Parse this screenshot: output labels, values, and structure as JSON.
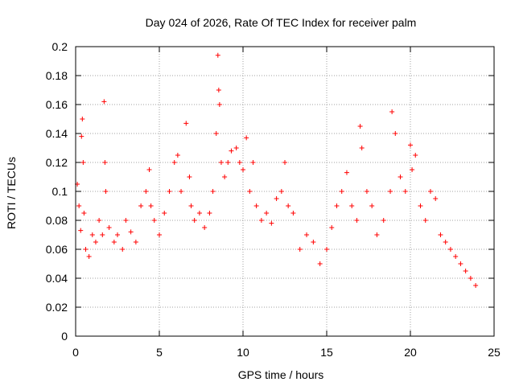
{
  "chart_data": {
    "type": "scatter",
    "title": "Day 024 of 2026, Rate Of TEC Index for receiver palm",
    "xlabel": "GPS time / hours",
    "ylabel": "ROTI / TECUs",
    "xlim": [
      0,
      25
    ],
    "ylim": [
      0,
      0.2
    ],
    "x_ticks": [
      0,
      5,
      10,
      15,
      20,
      25
    ],
    "x_tick_labels": [
      "0",
      "5",
      "10",
      "15",
      "20",
      "25"
    ],
    "y_ticks": [
      0,
      0.02,
      0.04,
      0.06,
      0.08,
      0.1,
      0.12,
      0.14,
      0.16,
      0.18,
      0.2
    ],
    "y_tick_labels": [
      "0",
      "0.02",
      "0.04",
      "0.06",
      "0.08",
      "0.1",
      "0.12",
      "0.14",
      "0.16",
      "0.18",
      "0.2"
    ],
    "grid": true,
    "marker": "+",
    "color": "#ff0000",
    "series": [
      {
        "x": [
          0.1,
          0.2,
          0.3,
          0.35,
          0.4,
          0.45,
          0.5,
          0.6,
          0.8,
          1.0,
          1.2,
          1.4,
          1.6,
          1.7,
          1.75,
          1.8,
          2.0,
          2.3,
          2.5,
          2.8,
          3.0,
          3.3,
          3.6,
          3.9,
          4.2,
          4.4,
          4.5,
          4.7,
          5.0,
          5.3,
          5.6,
          5.9,
          6.1,
          6.3,
          6.6,
          6.8,
          6.9,
          7.1,
          7.4,
          7.7,
          8.0,
          8.2,
          8.4,
          8.5,
          8.55,
          8.6,
          8.7,
          8.9,
          9.1,
          9.3,
          9.6,
          9.8,
          10.0,
          10.2,
          10.4,
          10.6,
          10.8,
          11.1,
          11.4,
          11.7,
          12.0,
          12.3,
          12.5,
          12.7,
          13.0,
          13.4,
          13.8,
          14.2,
          14.6,
          15.0,
          15.3,
          15.6,
          15.9,
          16.2,
          16.5,
          16.8,
          17.0,
          17.1,
          17.4,
          17.7,
          18.0,
          18.4,
          18.8,
          18.9,
          19.1,
          19.4,
          19.7,
          20.0,
          20.1,
          20.3,
          20.6,
          20.9,
          21.2,
          21.5,
          21.8,
          22.1,
          22.4,
          22.7,
          23.0,
          23.3,
          23.6,
          23.9
        ],
        "y": [
          0.105,
          0.09,
          0.073,
          0.138,
          0.15,
          0.12,
          0.085,
          0.06,
          0.055,
          0.07,
          0.065,
          0.08,
          0.07,
          0.162,
          0.12,
          0.1,
          0.075,
          0.065,
          0.07,
          0.06,
          0.08,
          0.072,
          0.065,
          0.09,
          0.1,
          0.115,
          0.09,
          0.08,
          0.07,
          0.085,
          0.1,
          0.12,
          0.125,
          0.1,
          0.147,
          0.11,
          0.09,
          0.08,
          0.085,
          0.075,
          0.085,
          0.1,
          0.14,
          0.194,
          0.17,
          0.16,
          0.12,
          0.11,
          0.12,
          0.128,
          0.13,
          0.12,
          0.115,
          0.137,
          0.1,
          0.12,
          0.09,
          0.08,
          0.085,
          0.078,
          0.095,
          0.1,
          0.12,
          0.09,
          0.085,
          0.06,
          0.07,
          0.065,
          0.05,
          0.06,
          0.075,
          0.09,
          0.1,
          0.113,
          0.09,
          0.08,
          0.145,
          0.13,
          0.1,
          0.09,
          0.07,
          0.08,
          0.1,
          0.155,
          0.14,
          0.11,
          0.1,
          0.132,
          0.115,
          0.125,
          0.09,
          0.08,
          0.1,
          0.095,
          0.07,
          0.065,
          0.06,
          0.055,
          0.05,
          0.045,
          0.04,
          0.035
        ]
      }
    ]
  }
}
